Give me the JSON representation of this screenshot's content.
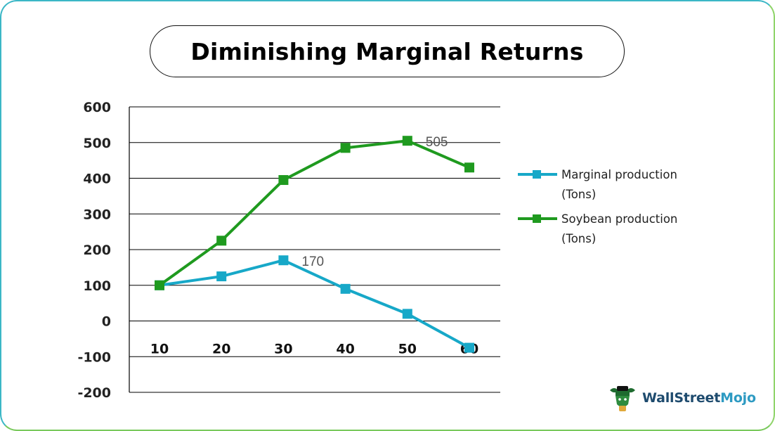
{
  "title": "Diminishing Marginal Returns",
  "chart_data": {
    "type": "line",
    "title": "Diminishing Marginal Returns",
    "x": [
      10,
      20,
      30,
      40,
      50,
      60
    ],
    "x_tick_labels": [
      "10",
      "20",
      "30",
      "40",
      "50",
      "60"
    ],
    "y_tick_labels": [
      "600",
      "500",
      "400",
      "300",
      "200",
      "100",
      "0",
      "-100",
      "-200"
    ],
    "ylim": [
      -200,
      600
    ],
    "grid": true,
    "legend_position": "right",
    "series": [
      {
        "name": "Marginal production (Tons)",
        "legend_lines": [
          "Marginal production",
          "(Tons)"
        ],
        "color": "#17a8c8",
        "values": [
          100,
          125,
          170,
          90,
          20,
          -75
        ],
        "annotations": [
          {
            "index": 2,
            "text": "170"
          }
        ]
      },
      {
        "name": "Soybean production (Tons)",
        "legend_lines": [
          "Soybean production",
          "(Tons)"
        ],
        "color": "#1f9a1f",
        "values": [
          100,
          225,
          395,
          485,
          505,
          430
        ],
        "annotations": [
          {
            "index": 4,
            "text": "505"
          }
        ]
      }
    ]
  },
  "brand": {
    "text_main": "WallStreet",
    "text_accent": "Mojo",
    "icon": "bull-mascot-icon"
  }
}
